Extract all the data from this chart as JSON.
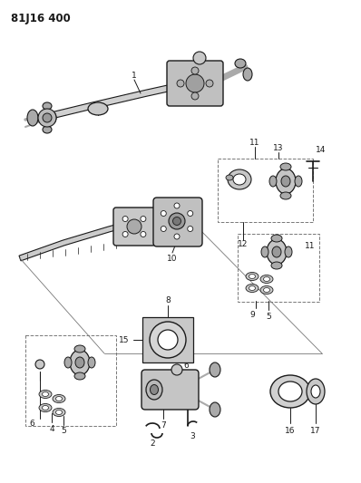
{
  "title": "81J16 400",
  "bg_color": "#ffffff",
  "line_color": "#1a1a1a",
  "title_fontsize": 8.5,
  "label_fontsize": 6.5,
  "fig_width": 3.98,
  "fig_height": 5.33,
  "dpi": 100,
  "gray1": "#c8c8c8",
  "gray2": "#aaaaaa",
  "gray3": "#888888",
  "gray_dark": "#555555"
}
